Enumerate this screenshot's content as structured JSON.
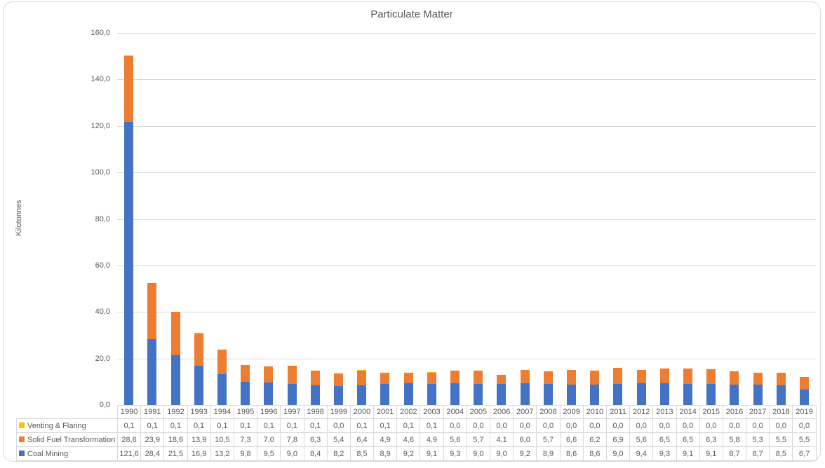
{
  "chart_data": {
    "type": "bar",
    "stacked": true,
    "title": "Particulate Matter",
    "ylabel": "Kilotonnes",
    "xlabel": "",
    "ylim": [
      0,
      160
    ],
    "ytick_step": 20,
    "ytick_labels": [
      "0,0",
      "20,0",
      "40,0",
      "60,0",
      "80,0",
      "100,0",
      "120,0",
      "140,0",
      "160,0"
    ],
    "grid": "horizontal",
    "legend_position": "data-table-bottom",
    "decimal_separator": ",",
    "categories": [
      "1990",
      "1991",
      "1992",
      "1993",
      "1994",
      "1995",
      "1996",
      "1997",
      "1998",
      "1999",
      "2000",
      "2001",
      "2002",
      "2003",
      "2004",
      "2005",
      "2006",
      "2007",
      "2008",
      "2009",
      "2010",
      "2011",
      "2012",
      "2013",
      "2014",
      "2015",
      "2016",
      "2017",
      "2018",
      "2019"
    ],
    "series": [
      {
        "name": "Venting & Flaring",
        "color": "#FFC000",
        "values": [
          0.1,
          0.1,
          0.1,
          0.1,
          0.1,
          0.1,
          0.1,
          0.1,
          0.1,
          0.0,
          0.1,
          0.1,
          0.1,
          0.1,
          0.0,
          0.0,
          0.0,
          0.0,
          0.0,
          0.0,
          0.0,
          0.0,
          0.0,
          0.0,
          0.0,
          0.0,
          0.0,
          0.0,
          0.0,
          0.0
        ]
      },
      {
        "name": "Solid Fuel Transformation",
        "color": "#ED7D31",
        "values": [
          28.6,
          23.9,
          18.6,
          13.9,
          10.5,
          7.3,
          7.0,
          7.8,
          6.3,
          5.4,
          6.4,
          4.9,
          4.6,
          4.9,
          5.6,
          5.7,
          4.1,
          6.0,
          5.7,
          6.6,
          6.2,
          6.9,
          5.6,
          6.5,
          6.5,
          6.3,
          5.8,
          5.3,
          5.5,
          5.5
        ]
      },
      {
        "name": "Coal Mining",
        "color": "#4472C4",
        "values": [
          121.6,
          28.4,
          21.5,
          16.9,
          13.2,
          9.8,
          9.5,
          9.0,
          8.4,
          8.2,
          8.5,
          8.9,
          9.2,
          9.1,
          9.3,
          9.0,
          9.0,
          9.2,
          8.9,
          8.6,
          8.6,
          9.0,
          9.4,
          9.3,
          9.1,
          9.1,
          8.7,
          8.7,
          8.5,
          6.7
        ]
      }
    ]
  },
  "colors": {
    "grid": "#D9D9D9",
    "border": "#D9D9D9",
    "text": "#595959"
  }
}
